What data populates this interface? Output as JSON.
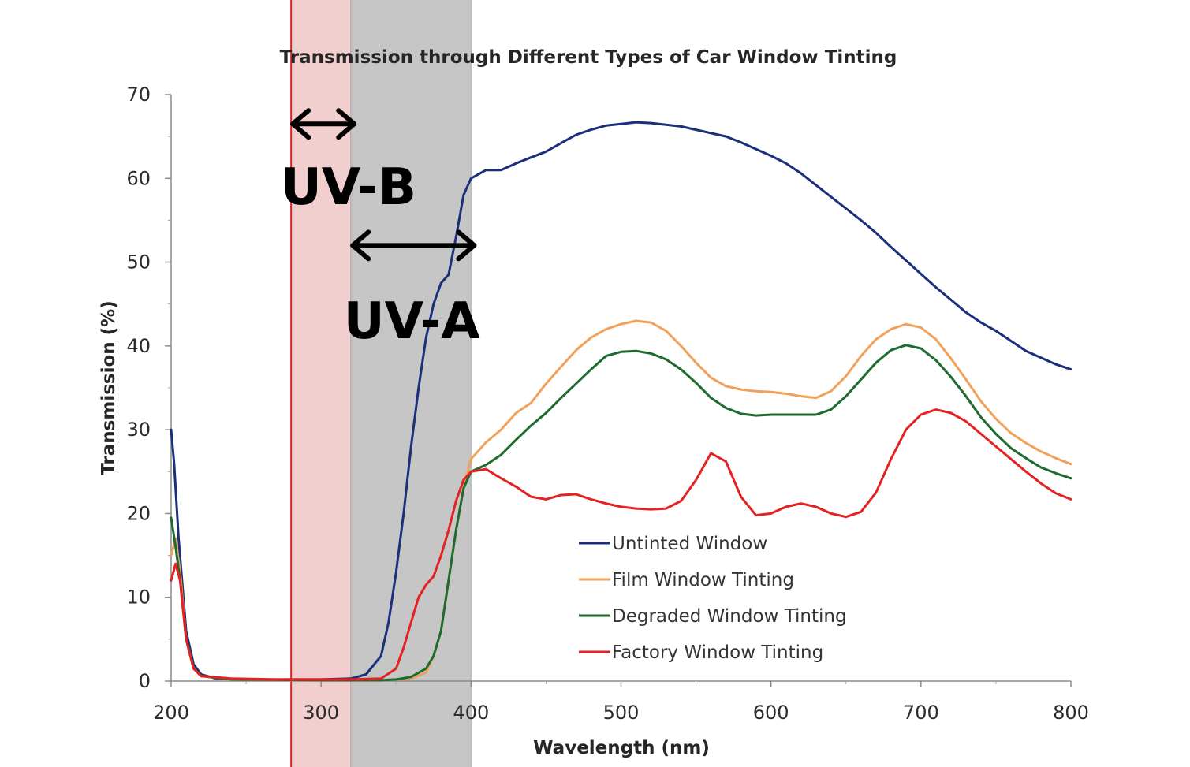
{
  "chart_data": {
    "type": "line",
    "title": "Transmission through Different Types of Car Window Tinting",
    "xlabel": "Wavelength (nm)",
    "ylabel": "Transmission (%)",
    "xlim": [
      200,
      800
    ],
    "ylim": [
      0,
      70
    ],
    "x_ticks": [
      200,
      300,
      400,
      500,
      600,
      700,
      800
    ],
    "y_ticks": [
      0,
      10,
      20,
      30,
      40,
      50,
      60,
      70
    ],
    "grid": false,
    "legend_position": "bottom-center",
    "bands": [
      {
        "name": "UV-B",
        "from": 280,
        "to": 320,
        "color": "#f2cfcf",
        "edge": "#d9282a"
      },
      {
        "name": "UV-A",
        "from": 320,
        "to": 400,
        "color": "#c6c6c6",
        "edge": "#bdbdbd"
      }
    ],
    "annotations": [
      {
        "text": "UV-B",
        "arrow_from": 280,
        "arrow_to": 320,
        "arrow_y": 66.5,
        "text_x": 273,
        "text_y": 59
      },
      {
        "text": "UV-A",
        "arrow_from": 320,
        "arrow_to": 400,
        "arrow_y": 52,
        "text_x": 315,
        "text_y": 43
      }
    ],
    "series": [
      {
        "name": "Untinted Window",
        "color": "#1b2f7a",
        "points": [
          [
            200,
            30
          ],
          [
            202,
            26
          ],
          [
            205,
            17
          ],
          [
            210,
            6
          ],
          [
            215,
            2
          ],
          [
            220,
            0.8
          ],
          [
            230,
            0.3
          ],
          [
            260,
            0.2
          ],
          [
            300,
            0.2
          ],
          [
            320,
            0.3
          ],
          [
            330,
            0.8
          ],
          [
            340,
            3
          ],
          [
            345,
            7
          ],
          [
            350,
            13
          ],
          [
            355,
            20
          ],
          [
            360,
            28
          ],
          [
            365,
            35
          ],
          [
            370,
            41
          ],
          [
            375,
            45
          ],
          [
            380,
            47.5
          ],
          [
            385,
            48.5
          ],
          [
            390,
            53
          ],
          [
            395,
            58
          ],
          [
            400,
            60
          ],
          [
            410,
            61
          ],
          [
            420,
            61
          ],
          [
            430,
            61.8
          ],
          [
            440,
            62.5
          ],
          [
            450,
            63.2
          ],
          [
            460,
            64.2
          ],
          [
            470,
            65.2
          ],
          [
            480,
            65.8
          ],
          [
            490,
            66.3
          ],
          [
            500,
            66.5
          ],
          [
            510,
            66.7
          ],
          [
            520,
            66.6
          ],
          [
            530,
            66.4
          ],
          [
            540,
            66.2
          ],
          [
            550,
            65.8
          ],
          [
            560,
            65.4
          ],
          [
            570,
            65
          ],
          [
            580,
            64.3
          ],
          [
            590,
            63.5
          ],
          [
            600,
            62.7
          ],
          [
            610,
            61.8
          ],
          [
            620,
            60.6
          ],
          [
            630,
            59.2
          ],
          [
            640,
            57.8
          ],
          [
            650,
            56.4
          ],
          [
            660,
            55
          ],
          [
            670,
            53.5
          ],
          [
            680,
            51.8
          ],
          [
            690,
            50.2
          ],
          [
            700,
            48.6
          ],
          [
            710,
            47
          ],
          [
            720,
            45.5
          ],
          [
            730,
            44
          ],
          [
            740,
            42.8
          ],
          [
            750,
            41.8
          ],
          [
            760,
            40.6
          ],
          [
            770,
            39.4
          ],
          [
            780,
            38.6
          ],
          [
            790,
            37.8
          ],
          [
            800,
            37.2
          ]
        ]
      },
      {
        "name": "Film Window Tinting",
        "color": "#f0a15a",
        "points": [
          [
            200,
            15
          ],
          [
            203,
            17
          ],
          [
            206,
            13
          ],
          [
            210,
            5
          ],
          [
            215,
            1.5
          ],
          [
            220,
            0.6
          ],
          [
            240,
            0.2
          ],
          [
            300,
            0.1
          ],
          [
            340,
            0.1
          ],
          [
            360,
            0.3
          ],
          [
            370,
            1
          ],
          [
            375,
            3
          ],
          [
            380,
            6
          ],
          [
            385,
            12
          ],
          [
            390,
            18
          ],
          [
            395,
            23
          ],
          [
            400,
            26.5
          ],
          [
            410,
            28.5
          ],
          [
            420,
            30
          ],
          [
            430,
            32
          ],
          [
            440,
            33.2
          ],
          [
            450,
            35.5
          ],
          [
            460,
            37.5
          ],
          [
            470,
            39.5
          ],
          [
            480,
            41
          ],
          [
            490,
            42
          ],
          [
            500,
            42.6
          ],
          [
            510,
            43
          ],
          [
            520,
            42.8
          ],
          [
            530,
            41.8
          ],
          [
            540,
            40
          ],
          [
            550,
            38
          ],
          [
            560,
            36.2
          ],
          [
            570,
            35.2
          ],
          [
            580,
            34.8
          ],
          [
            590,
            34.6
          ],
          [
            600,
            34.5
          ],
          [
            610,
            34.3
          ],
          [
            620,
            34
          ],
          [
            630,
            33.8
          ],
          [
            640,
            34.6
          ],
          [
            650,
            36.4
          ],
          [
            660,
            38.8
          ],
          [
            670,
            40.8
          ],
          [
            680,
            42
          ],
          [
            690,
            42.6
          ],
          [
            700,
            42.2
          ],
          [
            710,
            40.8
          ],
          [
            720,
            38.5
          ],
          [
            730,
            36
          ],
          [
            740,
            33.4
          ],
          [
            750,
            31.3
          ],
          [
            760,
            29.6
          ],
          [
            770,
            28.4
          ],
          [
            780,
            27.4
          ],
          [
            790,
            26.6
          ],
          [
            800,
            25.9
          ]
        ]
      },
      {
        "name": "Degraded Window Tinting",
        "color": "#1d6b2f",
        "points": [
          [
            200,
            19.5
          ],
          [
            203,
            16
          ],
          [
            206,
            12
          ],
          [
            210,
            5
          ],
          [
            215,
            1.5
          ],
          [
            220,
            0.6
          ],
          [
            240,
            0.2
          ],
          [
            300,
            0.1
          ],
          [
            340,
            0.1
          ],
          [
            350,
            0.2
          ],
          [
            360,
            0.5
          ],
          [
            370,
            1.5
          ],
          [
            375,
            3
          ],
          [
            380,
            6
          ],
          [
            385,
            12
          ],
          [
            390,
            18
          ],
          [
            395,
            23
          ],
          [
            400,
            25
          ],
          [
            410,
            25.8
          ],
          [
            420,
            27
          ],
          [
            430,
            28.8
          ],
          [
            440,
            30.5
          ],
          [
            450,
            32
          ],
          [
            460,
            33.8
          ],
          [
            470,
            35.5
          ],
          [
            480,
            37.2
          ],
          [
            490,
            38.8
          ],
          [
            500,
            39.3
          ],
          [
            510,
            39.4
          ],
          [
            520,
            39.1
          ],
          [
            530,
            38.4
          ],
          [
            540,
            37.2
          ],
          [
            550,
            35.6
          ],
          [
            560,
            33.8
          ],
          [
            570,
            32.6
          ],
          [
            580,
            31.9
          ],
          [
            590,
            31.7
          ],
          [
            600,
            31.8
          ],
          [
            610,
            31.8
          ],
          [
            620,
            31.8
          ],
          [
            630,
            31.8
          ],
          [
            640,
            32.4
          ],
          [
            650,
            34
          ],
          [
            660,
            36
          ],
          [
            670,
            38
          ],
          [
            680,
            39.5
          ],
          [
            690,
            40.1
          ],
          [
            700,
            39.7
          ],
          [
            710,
            38.3
          ],
          [
            720,
            36.3
          ],
          [
            730,
            34
          ],
          [
            740,
            31.5
          ],
          [
            750,
            29.5
          ],
          [
            760,
            27.8
          ],
          [
            770,
            26.6
          ],
          [
            780,
            25.5
          ],
          [
            790,
            24.8
          ],
          [
            800,
            24.2
          ]
        ]
      },
      {
        "name": "Factory Window Tinting",
        "color": "#e52222",
        "points": [
          [
            200,
            12
          ],
          [
            203,
            14
          ],
          [
            206,
            12
          ],
          [
            210,
            5
          ],
          [
            215,
            1.5
          ],
          [
            220,
            0.6
          ],
          [
            240,
            0.3
          ],
          [
            270,
            0.2
          ],
          [
            300,
            0.2
          ],
          [
            320,
            0.2
          ],
          [
            340,
            0.3
          ],
          [
            350,
            1.5
          ],
          [
            355,
            4
          ],
          [
            360,
            7
          ],
          [
            365,
            10
          ],
          [
            370,
            11.5
          ],
          [
            375,
            12.5
          ],
          [
            380,
            15
          ],
          [
            385,
            18
          ],
          [
            390,
            21.5
          ],
          [
            395,
            24
          ],
          [
            400,
            25
          ],
          [
            410,
            25.3
          ],
          [
            420,
            24.2
          ],
          [
            430,
            23.2
          ],
          [
            440,
            22
          ],
          [
            450,
            21.7
          ],
          [
            460,
            22.2
          ],
          [
            470,
            22.3
          ],
          [
            480,
            21.7
          ],
          [
            490,
            21.2
          ],
          [
            500,
            20.8
          ],
          [
            510,
            20.6
          ],
          [
            520,
            20.5
          ],
          [
            530,
            20.6
          ],
          [
            540,
            21.5
          ],
          [
            550,
            24
          ],
          [
            560,
            27.2
          ],
          [
            570,
            26.2
          ],
          [
            580,
            22
          ],
          [
            590,
            19.8
          ],
          [
            600,
            20
          ],
          [
            610,
            20.8
          ],
          [
            620,
            21.2
          ],
          [
            630,
            20.8
          ],
          [
            640,
            20
          ],
          [
            650,
            19.6
          ],
          [
            660,
            20.2
          ],
          [
            670,
            22.5
          ],
          [
            680,
            26.5
          ],
          [
            690,
            30
          ],
          [
            700,
            31.8
          ],
          [
            710,
            32.4
          ],
          [
            720,
            32
          ],
          [
            730,
            31
          ],
          [
            740,
            29.5
          ],
          [
            750,
            28
          ],
          [
            760,
            26.5
          ],
          [
            770,
            25
          ],
          [
            780,
            23.6
          ],
          [
            790,
            22.4
          ],
          [
            800,
            21.7
          ]
        ]
      }
    ]
  }
}
